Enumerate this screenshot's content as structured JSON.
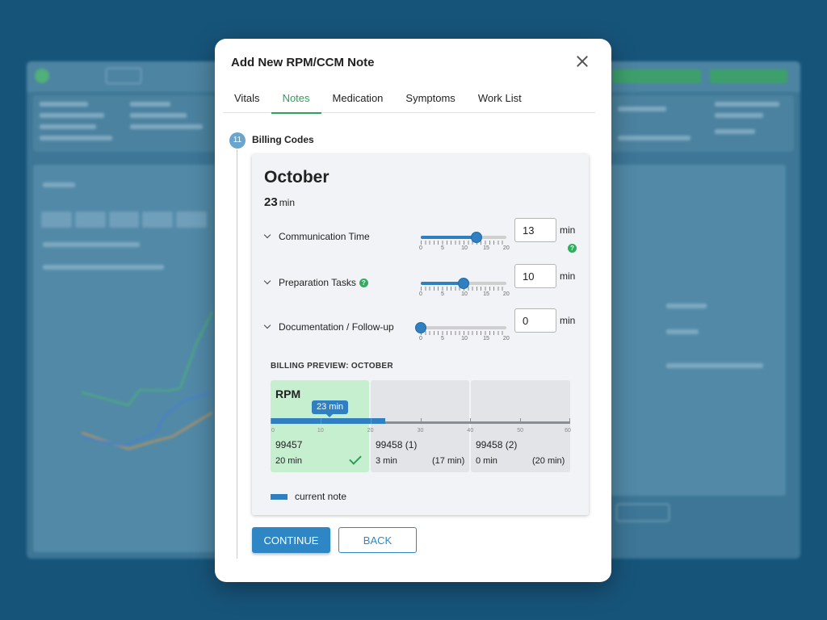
{
  "modal": {
    "title": "Add New RPM/CCM Note",
    "close_icon": "close-icon"
  },
  "tabs": [
    {
      "label": "Vitals",
      "active": false
    },
    {
      "label": "Notes",
      "active": true
    },
    {
      "label": "Medication",
      "active": false
    },
    {
      "label": "Symptoms",
      "active": false
    },
    {
      "label": "Work List",
      "active": false
    }
  ],
  "step": {
    "number": "11",
    "title": "Billing Codes"
  },
  "summary": {
    "month": "October",
    "total_minutes": "23",
    "unit": "min"
  },
  "time_rows": [
    {
      "label": "Communication Time",
      "value": "13",
      "unit": "min",
      "help": true,
      "slider_max": 20
    },
    {
      "label": "Preparation Tasks",
      "value": "10",
      "unit": "min",
      "help": true,
      "slider_max": 20
    },
    {
      "label": "Documentation / Follow-up",
      "value": "0",
      "unit": "min",
      "help": false,
      "slider_max": 20
    }
  ],
  "slider_ticks": [
    "0",
    "5",
    "10",
    "15",
    "20"
  ],
  "billing_preview": {
    "title": "BILLING PREVIEW: OCTOBER",
    "program": "RPM",
    "current_minutes_badge": "23 min",
    "current_minutes": 23,
    "axis_max": 60,
    "axis_ticks": [
      "0",
      "10",
      "20",
      "30",
      "40",
      "50",
      "60"
    ],
    "codes": [
      {
        "code": "99457",
        "minutes": "20 min",
        "required": "",
        "met": true
      },
      {
        "code": "99458 (1)",
        "minutes": "3 min",
        "required": "(17 min)",
        "met": false
      },
      {
        "code": "99458 (2)",
        "minutes": "0 min",
        "required": "(20 min)",
        "met": false
      }
    ],
    "legend": "current note"
  },
  "actions": {
    "continue": "CONTINUE",
    "back": "BACK"
  },
  "colors": {
    "accent": "#2f86c4",
    "tab_active": "#2aa15c",
    "met_bg": "#c6efcf",
    "help": "#2fae5f"
  }
}
